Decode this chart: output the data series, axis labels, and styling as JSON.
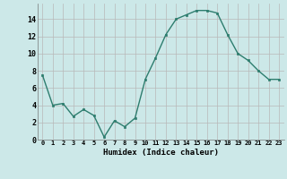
{
  "x": [
    0,
    1,
    2,
    3,
    4,
    5,
    6,
    7,
    8,
    9,
    10,
    11,
    12,
    13,
    14,
    15,
    16,
    17,
    18,
    19,
    20,
    21,
    22,
    23
  ],
  "y": [
    7.5,
    4.0,
    4.2,
    2.7,
    3.5,
    2.8,
    0.3,
    2.2,
    1.5,
    2.5,
    7.0,
    9.5,
    12.2,
    14.0,
    14.5,
    15.0,
    15.0,
    14.7,
    12.2,
    10.0,
    9.2,
    8.0,
    7.0,
    7.0
  ],
  "xlabel": "Humidex (Indice chaleur)",
  "ylim": [
    0,
    15
  ],
  "xlim": [
    -0.5,
    23.5
  ],
  "yticks": [
    0,
    2,
    4,
    6,
    8,
    10,
    12,
    14
  ],
  "xticks": [
    0,
    1,
    2,
    3,
    4,
    5,
    6,
    7,
    8,
    9,
    10,
    11,
    12,
    13,
    14,
    15,
    16,
    17,
    18,
    19,
    20,
    21,
    22,
    23
  ],
  "line_color": "#2d7d6e",
  "bg_color": "#cce8e8",
  "grid_color_major": "#b8b8b8",
  "grid_color_minor": "#d0d0d0"
}
